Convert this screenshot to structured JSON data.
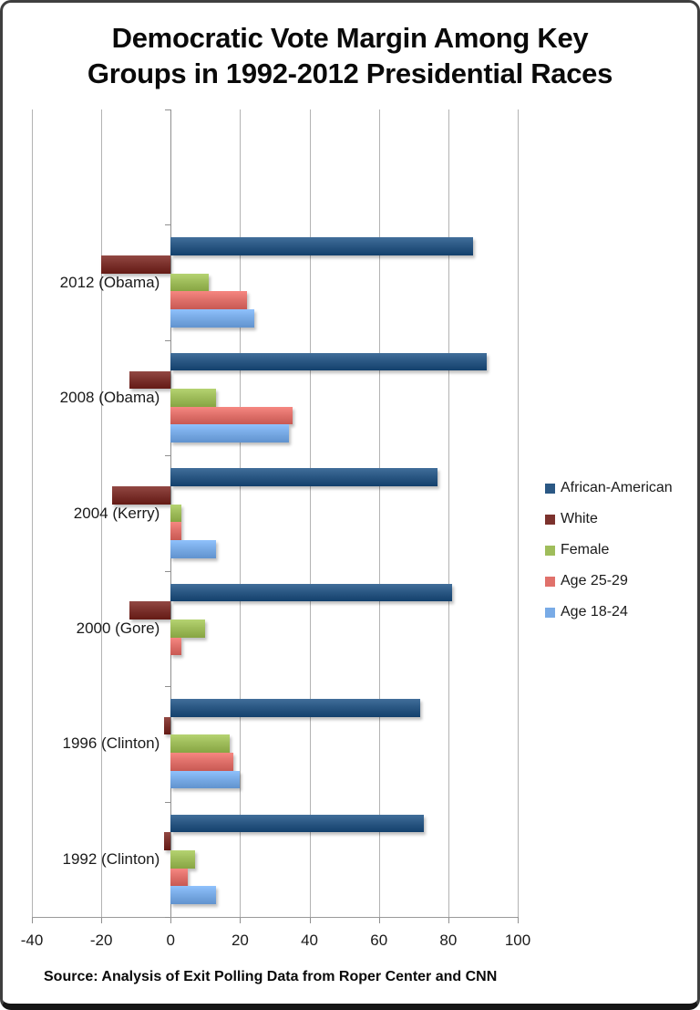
{
  "title": {
    "line1": "Democratic Vote Margin Among Key",
    "line2": "Groups in 1992-2012 Presidential Races"
  },
  "source": "Source: Analysis of Exit Polling Data from Roper Center and CNN",
  "chart_data": {
    "type": "bar",
    "orientation": "horizontal",
    "title": "Democratic Vote Margin Among Key Groups in 1992-2012 Presidential Races",
    "categories": [
      "2012 (Obama)",
      "2008 (Obama)",
      "2004 (Kerry)",
      "2000 (Gore)",
      "1996 (Clinton)",
      "1992 (Clinton)"
    ],
    "series": [
      {
        "name": "African-American",
        "color": "#2B5884",
        "values": [
          87,
          91,
          77,
          81,
          72,
          73
        ]
      },
      {
        "name": "White",
        "color": "#7C322D",
        "values": [
          -20,
          -12,
          -17,
          -12,
          -2,
          -2
        ]
      },
      {
        "name": "Female",
        "color": "#9FBD5B",
        "values": [
          11,
          13,
          3,
          10,
          17,
          7
        ]
      },
      {
        "name": "Age 25-29",
        "color": "#E0716B",
        "values": [
          22,
          35,
          3,
          3,
          18,
          5
        ]
      },
      {
        "name": "Age 18-24",
        "color": "#79ABE6",
        "values": [
          24,
          34,
          13,
          0,
          20,
          13
        ]
      }
    ],
    "x_axis": {
      "min": -40,
      "max": 100,
      "tick_interval": 20,
      "tick_labels": [
        "-40",
        "-20",
        "0",
        "20",
        "40",
        "60",
        "80",
        "100"
      ]
    },
    "legend_position": "right",
    "grid": true
  }
}
